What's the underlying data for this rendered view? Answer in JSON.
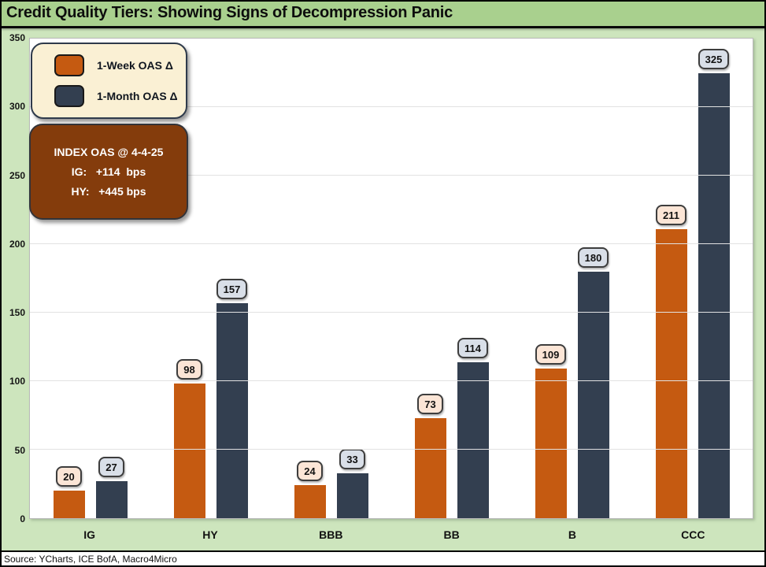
{
  "title": "Credit Quality Tiers: Showing Signs of Decompression Panic",
  "source": "Source: YCharts, ICE BofA, Macro4Micro",
  "colors": {
    "title_bar_bg": "#A9D08E",
    "canvas_bg": "#CDE5BD",
    "plot_bg": "#FFFFFF",
    "gridline": "#E2E2E2",
    "legend_bg": "#FAF0D4",
    "info_box_bg": "#843C0C",
    "week_orange": "#C55A11",
    "month_navy": "#333F50",
    "week_label_bg": "#FBE5D6",
    "month_label_bg": "#D9DFE8"
  },
  "legend": {
    "items": [
      {
        "label": "1-Week OAS Δ",
        "color": "#C55A11"
      },
      {
        "label": "1-Month OAS Δ",
        "color": "#333F50"
      }
    ]
  },
  "info_box": {
    "line1": "INDEX OAS @ 4-4-25",
    "line2": "IG:   +114  bps",
    "line3": "HY:   +445 bps"
  },
  "chart_data": {
    "type": "bar",
    "title": "Credit Quality Tiers: Showing Signs of Decompression Panic",
    "categories": [
      "IG",
      "HY",
      "BBB",
      "BB",
      "B",
      "CCC"
    ],
    "series": [
      {
        "name": "1-Week OAS Δ",
        "color": "#C55A11",
        "label_bg": "#FBE5D6",
        "values": [
          20,
          98,
          24,
          73,
          109,
          211
        ]
      },
      {
        "name": "1-Month OAS Δ",
        "color": "#333F50",
        "label_bg": "#D9DFE8",
        "values": [
          27,
          157,
          33,
          114,
          180,
          325
        ]
      }
    ],
    "xlabel": "",
    "ylabel": "",
    "ylim": [
      0,
      350
    ],
    "yticks": [
      0,
      50,
      100,
      150,
      200,
      250,
      300,
      350
    ],
    "grid": "horizontal",
    "legend_position": "top-left",
    "units": "bps"
  }
}
